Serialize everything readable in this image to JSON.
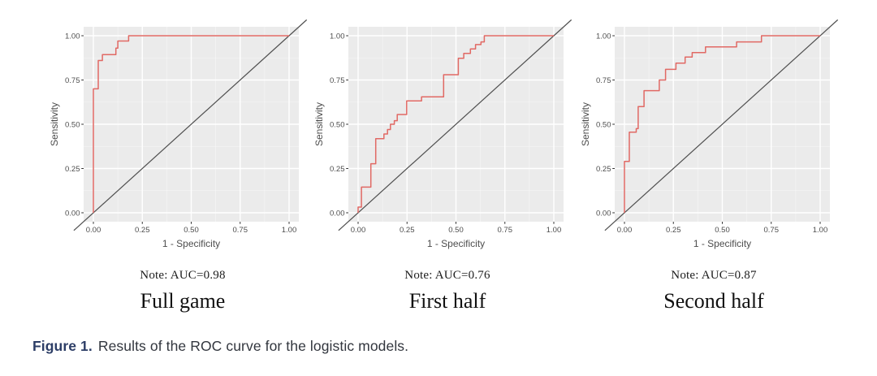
{
  "figure": {
    "caption_label": "Figure 1.",
    "caption_text": "Results of the ROC curve for the logistic models."
  },
  "axes": {
    "x_label": "1 - Specificity",
    "y_label": "Sensitivity",
    "x_ticks": [
      "0.00",
      "0.25",
      "0.50",
      "0.75",
      "1.00"
    ],
    "y_ticks": [
      "0.00",
      "0.25",
      "0.50",
      "0.75",
      "1.00"
    ],
    "x_range": [
      0,
      1
    ],
    "y_range": [
      0,
      1
    ]
  },
  "colors": {
    "panel_bg": "#ebebeb",
    "grid_major": "#ffffff",
    "grid_minor": "#f7f7f7",
    "roc_line": "#e16964",
    "diagonal": "#4f4f4f",
    "tick_text": "#4d4d4d",
    "axis_title": "#4d4d4d",
    "tick_mark": "#333333"
  },
  "chart_data": [
    {
      "type": "line",
      "subtype": "roc-step-curve",
      "title": "Full game",
      "note": "Note: AUC=0.98",
      "auc": 0.98,
      "xlabel": "1 - Specificity",
      "ylabel": "Sensitivity",
      "xlim": [
        0,
        1
      ],
      "ylim": [
        0,
        1
      ],
      "grid": true,
      "legend": false,
      "reference_diagonal": true,
      "points": [
        [
          0,
          0
        ],
        [
          0,
          0.7
        ],
        [
          0.025,
          0.7
        ],
        [
          0.025,
          0.86
        ],
        [
          0.046,
          0.86
        ],
        [
          0.046,
          0.893
        ],
        [
          0.115,
          0.893
        ],
        [
          0.115,
          0.93
        ],
        [
          0.125,
          0.93
        ],
        [
          0.125,
          0.97
        ],
        [
          0.18,
          0.97
        ],
        [
          0.18,
          1
        ],
        [
          1,
          1
        ]
      ]
    },
    {
      "type": "line",
      "subtype": "roc-step-curve",
      "title": "First half",
      "note": "Note: AUC=0.76",
      "auc": 0.76,
      "xlabel": "1 - Specificity",
      "ylabel": "Sensitivity",
      "xlim": [
        0,
        1
      ],
      "ylim": [
        0,
        1
      ],
      "grid": true,
      "legend": false,
      "reference_diagonal": true,
      "points": [
        [
          0,
          0
        ],
        [
          0,
          0.032
        ],
        [
          0.017,
          0.032
        ],
        [
          0.017,
          0.145
        ],
        [
          0.065,
          0.145
        ],
        [
          0.065,
          0.277
        ],
        [
          0.09,
          0.277
        ],
        [
          0.09,
          0.419
        ],
        [
          0.132,
          0.419
        ],
        [
          0.132,
          0.445
        ],
        [
          0.15,
          0.445
        ],
        [
          0.15,
          0.47
        ],
        [
          0.165,
          0.47
        ],
        [
          0.165,
          0.5
        ],
        [
          0.185,
          0.5
        ],
        [
          0.185,
          0.52
        ],
        [
          0.2,
          0.52
        ],
        [
          0.2,
          0.555
        ],
        [
          0.248,
          0.555
        ],
        [
          0.248,
          0.632
        ],
        [
          0.324,
          0.632
        ],
        [
          0.324,
          0.655
        ],
        [
          0.437,
          0.655
        ],
        [
          0.437,
          0.78
        ],
        [
          0.512,
          0.78
        ],
        [
          0.512,
          0.873
        ],
        [
          0.54,
          0.873
        ],
        [
          0.54,
          0.9
        ],
        [
          0.574,
          0.9
        ],
        [
          0.574,
          0.925
        ],
        [
          0.6,
          0.925
        ],
        [
          0.6,
          0.95
        ],
        [
          0.628,
          0.95
        ],
        [
          0.628,
          0.965
        ],
        [
          0.645,
          0.965
        ],
        [
          0.645,
          1
        ],
        [
          1,
          1
        ]
      ]
    },
    {
      "type": "line",
      "subtype": "roc-step-curve",
      "title": "Second half",
      "note": "Note: AUC=0.87",
      "auc": 0.87,
      "xlabel": "1 - Specificity",
      "ylabel": "Sensitivity",
      "xlim": [
        0,
        1
      ],
      "ylim": [
        0,
        1
      ],
      "grid": true,
      "legend": false,
      "reference_diagonal": true,
      "points": [
        [
          0,
          0
        ],
        [
          0,
          0.29
        ],
        [
          0.025,
          0.29
        ],
        [
          0.025,
          0.455
        ],
        [
          0.06,
          0.455
        ],
        [
          0.06,
          0.475
        ],
        [
          0.07,
          0.475
        ],
        [
          0.07,
          0.6
        ],
        [
          0.1,
          0.6
        ],
        [
          0.1,
          0.69
        ],
        [
          0.178,
          0.69
        ],
        [
          0.178,
          0.75
        ],
        [
          0.21,
          0.75
        ],
        [
          0.21,
          0.81
        ],
        [
          0.263,
          0.81
        ],
        [
          0.263,
          0.845
        ],
        [
          0.31,
          0.845
        ],
        [
          0.31,
          0.88
        ],
        [
          0.346,
          0.88
        ],
        [
          0.346,
          0.905
        ],
        [
          0.414,
          0.905
        ],
        [
          0.414,
          0.937
        ],
        [
          0.573,
          0.937
        ],
        [
          0.573,
          0.965
        ],
        [
          0.7,
          0.965
        ],
        [
          0.7,
          1
        ],
        [
          1,
          1
        ]
      ]
    }
  ]
}
